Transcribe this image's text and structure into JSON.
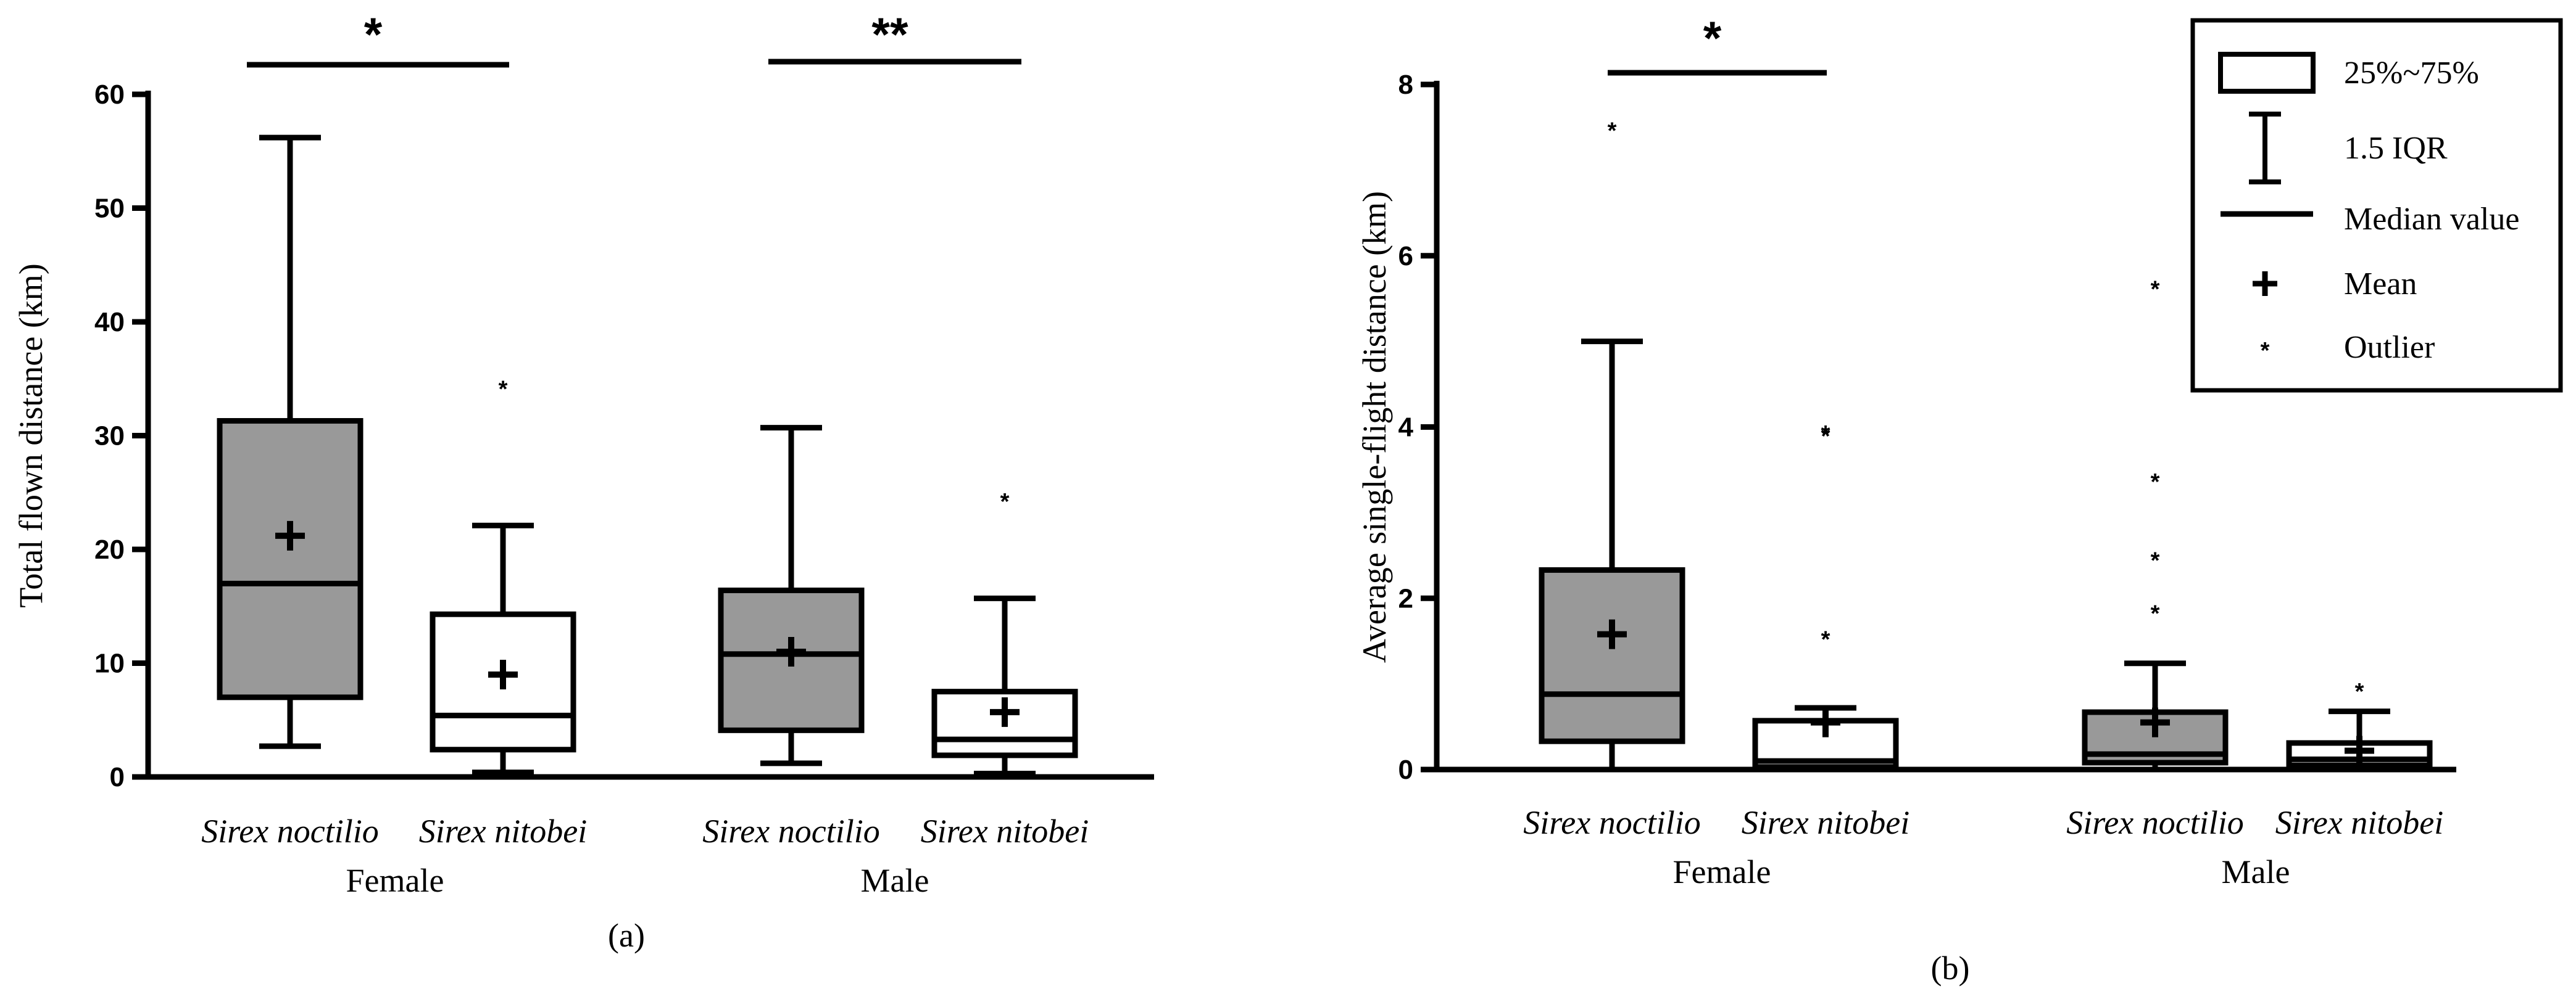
{
  "chart_data": [
    {
      "panel": "(a)",
      "type": "box",
      "ylabel": "Total flown distance (km)",
      "ylim": [
        0,
        60
      ],
      "yticks": [
        0,
        10,
        20,
        30,
        40,
        50,
        60
      ],
      "groups": [
        "Female",
        "Male"
      ],
      "species": [
        "Sirex noctilio",
        "Sirex nitobei"
      ],
      "boxes": [
        {
          "name": "Sirex noctilio",
          "group": "Female",
          "fill": "#999999",
          "whisker_low": 2.7,
          "q1": 7.0,
          "median": 17.0,
          "q3": 31.3,
          "whisker_high": 56.2,
          "mean": 21.2,
          "outliers": []
        },
        {
          "name": "Sirex nitobei",
          "group": "Female",
          "fill": "#ffffff",
          "whisker_low": 0.4,
          "q1": 2.4,
          "median": 5.4,
          "q3": 14.3,
          "whisker_high": 22.1,
          "mean": 9.0,
          "outliers": [
            34.4
          ]
        },
        {
          "name": "Sirex noctilio",
          "group": "Male",
          "fill": "#999999",
          "whisker_low": 1.2,
          "q1": 4.1,
          "median": 10.8,
          "q3": 16.4,
          "whisker_high": 30.7,
          "mean": 11.0,
          "outliers": []
        },
        {
          "name": "Sirex nitobei",
          "group": "Male",
          "fill": "#ffffff",
          "whisker_low": 0.3,
          "q1": 1.9,
          "median": 3.3,
          "q3": 7.5,
          "whisker_high": 15.7,
          "mean": 5.7,
          "outliers": [
            24.5
          ]
        }
      ],
      "significance": [
        {
          "group": "Female",
          "label": "*"
        },
        {
          "group": "Male",
          "label": "**"
        }
      ]
    },
    {
      "panel": "(b)",
      "type": "box",
      "ylabel": "Average single-flight distance (km)",
      "ylim": [
        0,
        8
      ],
      "yticks": [
        0,
        2,
        4,
        6,
        8
      ],
      "groups": [
        "Female",
        "Male"
      ],
      "species": [
        "Sirex noctilio",
        "Sirex nitobei"
      ],
      "boxes": [
        {
          "name": "Sirex noctilio",
          "group": "Female",
          "fill": "#999999",
          "whisker_low": 0.0,
          "q1": 0.33,
          "median": 0.88,
          "q3": 2.33,
          "whisker_high": 5.0,
          "mean": 1.58,
          "outliers": [
            7.5
          ]
        },
        {
          "name": "Sirex nitobei",
          "group": "Female",
          "fill": "#ffffff",
          "whisker_low": 0.0,
          "q1": 0.03,
          "median": 0.1,
          "q3": 0.57,
          "whisker_high": 0.72,
          "mean": 0.55,
          "outliers": [
            1.56,
            3.93,
            3.96
          ]
        },
        {
          "name": "Sirex noctilio",
          "group": "Male",
          "fill": "#999999",
          "whisker_low": 0.0,
          "q1": 0.08,
          "median": 0.18,
          "q3": 0.67,
          "whisker_high": 1.24,
          "mean": 0.55,
          "outliers": [
            1.86,
            2.48,
            3.4,
            5.65
          ]
        },
        {
          "name": "Sirex nitobei",
          "group": "Male",
          "fill": "#ffffff",
          "whisker_low": 0.0,
          "q1": 0.05,
          "median": 0.12,
          "q3": 0.31,
          "whisker_high": 0.68,
          "mean": 0.22,
          "outliers": [
            0.95
          ]
        }
      ],
      "significance": [
        {
          "group": "Female",
          "label": "*"
        }
      ]
    }
  ],
  "legend": {
    "items": [
      {
        "symbol": "box",
        "label": "25%~75%"
      },
      {
        "symbol": "whisker",
        "label": "1.5 IQR"
      },
      {
        "symbol": "line",
        "label": "Median value"
      },
      {
        "symbol": "plus",
        "label": "Mean"
      },
      {
        "symbol": "star",
        "label": "Outlier"
      }
    ]
  },
  "colors": {
    "noctilio_fill": "#999999",
    "nitobei_fill": "#ffffff",
    "stroke": "#000000"
  }
}
